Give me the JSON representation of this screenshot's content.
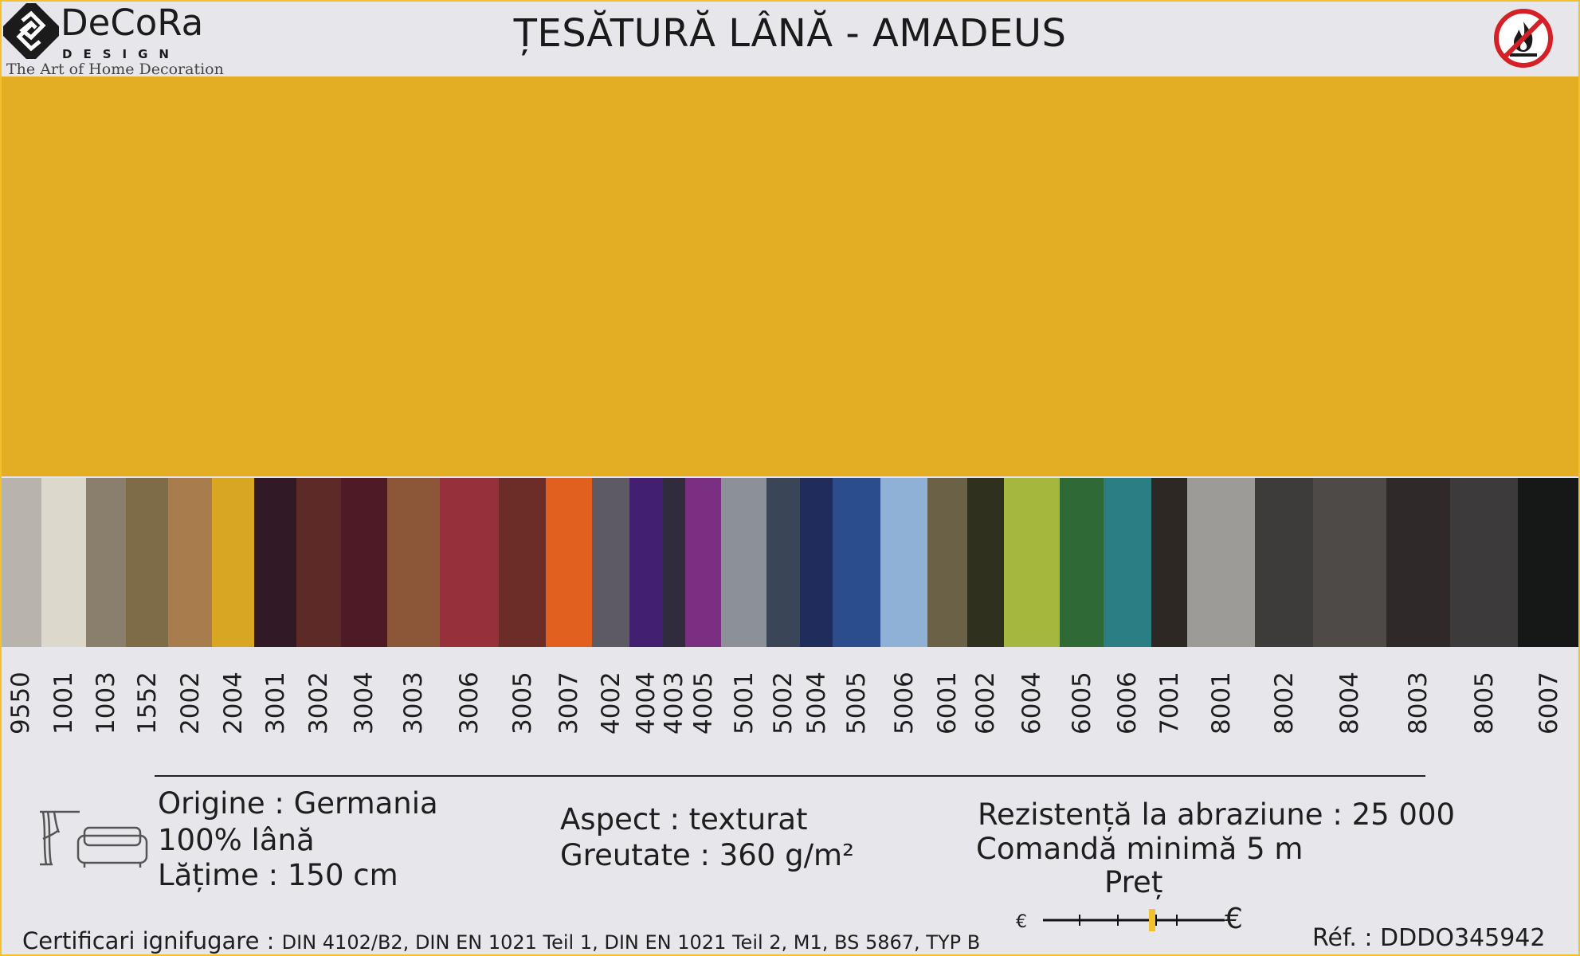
{
  "header": {
    "brand": "DeCoRa",
    "brand_sub": "DESIGN",
    "tagline": "The Art of Home Decoration",
    "title": "ȚESĂTURĂ LÂNĂ - AMADEUS"
  },
  "colors": {
    "main_swatch": "#e3ae23",
    "frame_accent": "#f2c12e"
  },
  "swatches": [
    {
      "code": "9550",
      "color": "#b8b4ad"
    },
    {
      "code": "1001",
      "color": "#dcd8cb"
    },
    {
      "code": "1003",
      "color": "#8a7e6c"
    },
    {
      "code": "1552",
      "color": "#7e6c49"
    },
    {
      "code": "2002",
      "color": "#a97c4d"
    },
    {
      "code": "2004",
      "color": "#d9a624"
    },
    {
      "code": "3001",
      "color": "#311a25"
    },
    {
      "code": "3002",
      "color": "#5e2a28"
    },
    {
      "code": "3004",
      "color": "#4e1a26"
    },
    {
      "code": "3003",
      "color": "#8c5639"
    },
    {
      "code": "3006",
      "color": "#96303a"
    },
    {
      "code": "3005",
      "color": "#6c2c28"
    },
    {
      "code": "3007",
      "color": "#e16020"
    },
    {
      "code": "4002",
      "color": "#5e5a64"
    },
    {
      "code": "4004",
      "color": "#431f72"
    },
    {
      "code": "4003",
      "color": "#302c3e"
    },
    {
      "code": "4005",
      "color": "#7b2f82"
    },
    {
      "code": "5001",
      "color": "#8c9198"
    },
    {
      "code": "5002",
      "color": "#3a4658"
    },
    {
      "code": "5004",
      "color": "#1f2c5c"
    },
    {
      "code": "5005",
      "color": "#2b4d8e"
    },
    {
      "code": "5006",
      "color": "#8fb1d5"
    },
    {
      "code": "6001",
      "color": "#6b6146"
    },
    {
      "code": "6002",
      "color": "#30301f"
    },
    {
      "code": "6004",
      "color": "#a6b73e"
    },
    {
      "code": "6005",
      "color": "#2f6a36"
    },
    {
      "code": "6006",
      "color": "#2b7e84"
    },
    {
      "code": "7001",
      "color": "#2e2825"
    },
    {
      "code": "8001",
      "color": "#9c9b98"
    },
    {
      "code": "8002",
      "color": "#3e3c3b"
    },
    {
      "code": "8004",
      "color": "#4e4a47"
    },
    {
      "code": "8003",
      "color": "#2f2a29"
    },
    {
      "code": "8005",
      "color": "#3c3a3b"
    },
    {
      "code": "6007",
      "color": "#161817"
    }
  ],
  "specs": {
    "origin": "Origine : Germania",
    "composition": "100% lână",
    "width": "Lățime : 150 cm",
    "aspect": "Aspect : texturat",
    "weight": "Greutate : 360 g/m²",
    "abrasion": "Rezistență la abraziune : 25 000",
    "min_order": "Comandă minimă 5 m",
    "price_label": "Preț",
    "price_low_symbol": "€",
    "price_high_symbol": "€"
  },
  "certs": {
    "label": "Certificari ignifugare : ",
    "value": "DIN 4102/B2, DIN EN 1021 Teil 1, DIN EN 1021 Teil 2, M1, BS 5867, TYP B"
  },
  "ref": "Réf. : DDDO345942",
  "icons": [
    "curtain-icon",
    "sofa-icon",
    "fire-retardant-icon"
  ]
}
